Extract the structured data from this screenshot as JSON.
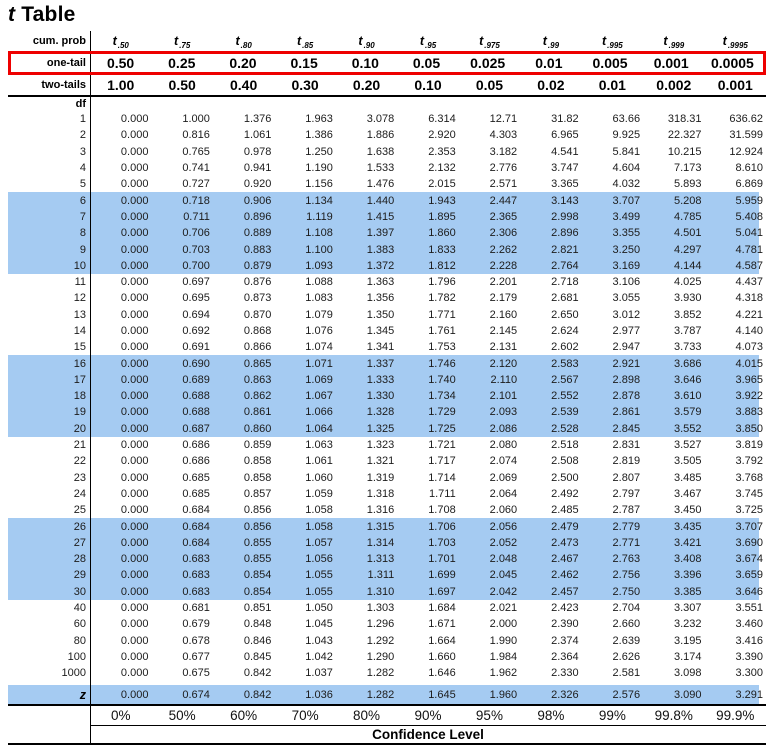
{
  "title": {
    "italic": "t",
    "rest": "Table"
  },
  "colors": {
    "highlight_blue": "#A5CBF2",
    "box_red": "#EE0000"
  },
  "header": {
    "corner_label": "cum. prob",
    "t_base": "t",
    "t_subscripts": [
      ".50",
      ".75",
      ".80",
      ".85",
      ".90",
      ".95",
      ".975",
      ".99",
      ".995",
      ".999",
      ".9995"
    ],
    "one_tail": {
      "label": "one-tail",
      "values": [
        "0.50",
        "0.25",
        "0.20",
        "0.15",
        "0.10",
        "0.05",
        "0.025",
        "0.01",
        "0.005",
        "0.001",
        "0.0005"
      ]
    },
    "two_tails": {
      "label": "two-tails",
      "values": [
        "1.00",
        "0.50",
        "0.40",
        "0.30",
        "0.20",
        "0.10",
        "0.05",
        "0.02",
        "0.01",
        "0.002",
        "0.001"
      ]
    },
    "df_label": "df"
  },
  "chart_data": {
    "type": "table",
    "title": "t Table",
    "columns": [
      "t.50",
      "t.75",
      "t.80",
      "t.85",
      "t.90",
      "t.95",
      "t.975",
      "t.99",
      "t.995",
      "t.999",
      "t.9995"
    ],
    "highlighted_df": [
      "6",
      "7",
      "8",
      "9",
      "10",
      "16",
      "17",
      "18",
      "19",
      "20",
      "26",
      "27",
      "28",
      "29",
      "30",
      "z"
    ],
    "rows": [
      {
        "df": "1",
        "v": [
          "0.000",
          "1.000",
          "1.376",
          "1.963",
          "3.078",
          "6.314",
          "12.71",
          "31.82",
          "63.66",
          "318.31",
          "636.62"
        ]
      },
      {
        "df": "2",
        "v": [
          "0.000",
          "0.816",
          "1.061",
          "1.386",
          "1.886",
          "2.920",
          "4.303",
          "6.965",
          "9.925",
          "22.327",
          "31.599"
        ]
      },
      {
        "df": "3",
        "v": [
          "0.000",
          "0.765",
          "0.978",
          "1.250",
          "1.638",
          "2.353",
          "3.182",
          "4.541",
          "5.841",
          "10.215",
          "12.924"
        ]
      },
      {
        "df": "4",
        "v": [
          "0.000",
          "0.741",
          "0.941",
          "1.190",
          "1.533",
          "2.132",
          "2.776",
          "3.747",
          "4.604",
          "7.173",
          "8.610"
        ]
      },
      {
        "df": "5",
        "v": [
          "0.000",
          "0.727",
          "0.920",
          "1.156",
          "1.476",
          "2.015",
          "2.571",
          "3.365",
          "4.032",
          "5.893",
          "6.869"
        ]
      },
      {
        "df": "6",
        "v": [
          "0.000",
          "0.718",
          "0.906",
          "1.134",
          "1.440",
          "1.943",
          "2.447",
          "3.143",
          "3.707",
          "5.208",
          "5.959"
        ]
      },
      {
        "df": "7",
        "v": [
          "0.000",
          "0.711",
          "0.896",
          "1.119",
          "1.415",
          "1.895",
          "2.365",
          "2.998",
          "3.499",
          "4.785",
          "5.408"
        ]
      },
      {
        "df": "8",
        "v": [
          "0.000",
          "0.706",
          "0.889",
          "1.108",
          "1.397",
          "1.860",
          "2.306",
          "2.896",
          "3.355",
          "4.501",
          "5.041"
        ]
      },
      {
        "df": "9",
        "v": [
          "0.000",
          "0.703",
          "0.883",
          "1.100",
          "1.383",
          "1.833",
          "2.262",
          "2.821",
          "3.250",
          "4.297",
          "4.781"
        ]
      },
      {
        "df": "10",
        "v": [
          "0.000",
          "0.700",
          "0.879",
          "1.093",
          "1.372",
          "1.812",
          "2.228",
          "2.764",
          "3.169",
          "4.144",
          "4.587"
        ]
      },
      {
        "df": "11",
        "v": [
          "0.000",
          "0.697",
          "0.876",
          "1.088",
          "1.363",
          "1.796",
          "2.201",
          "2.718",
          "3.106",
          "4.025",
          "4.437"
        ]
      },
      {
        "df": "12",
        "v": [
          "0.000",
          "0.695",
          "0.873",
          "1.083",
          "1.356",
          "1.782",
          "2.179",
          "2.681",
          "3.055",
          "3.930",
          "4.318"
        ]
      },
      {
        "df": "13",
        "v": [
          "0.000",
          "0.694",
          "0.870",
          "1.079",
          "1.350",
          "1.771",
          "2.160",
          "2.650",
          "3.012",
          "3.852",
          "4.221"
        ]
      },
      {
        "df": "14",
        "v": [
          "0.000",
          "0.692",
          "0.868",
          "1.076",
          "1.345",
          "1.761",
          "2.145",
          "2.624",
          "2.977",
          "3.787",
          "4.140"
        ]
      },
      {
        "df": "15",
        "v": [
          "0.000",
          "0.691",
          "0.866",
          "1.074",
          "1.341",
          "1.753",
          "2.131",
          "2.602",
          "2.947",
          "3.733",
          "4.073"
        ]
      },
      {
        "df": "16",
        "v": [
          "0.000",
          "0.690",
          "0.865",
          "1.071",
          "1.337",
          "1.746",
          "2.120",
          "2.583",
          "2.921",
          "3.686",
          "4.015"
        ]
      },
      {
        "df": "17",
        "v": [
          "0.000",
          "0.689",
          "0.863",
          "1.069",
          "1.333",
          "1.740",
          "2.110",
          "2.567",
          "2.898",
          "3.646",
          "3.965"
        ]
      },
      {
        "df": "18",
        "v": [
          "0.000",
          "0.688",
          "0.862",
          "1.067",
          "1.330",
          "1.734",
          "2.101",
          "2.552",
          "2.878",
          "3.610",
          "3.922"
        ]
      },
      {
        "df": "19",
        "v": [
          "0.000",
          "0.688",
          "0.861",
          "1.066",
          "1.328",
          "1.729",
          "2.093",
          "2.539",
          "2.861",
          "3.579",
          "3.883"
        ]
      },
      {
        "df": "20",
        "v": [
          "0.000",
          "0.687",
          "0.860",
          "1.064",
          "1.325",
          "1.725",
          "2.086",
          "2.528",
          "2.845",
          "3.552",
          "3.850"
        ]
      },
      {
        "df": "21",
        "v": [
          "0.000",
          "0.686",
          "0.859",
          "1.063",
          "1.323",
          "1.721",
          "2.080",
          "2.518",
          "2.831",
          "3.527",
          "3.819"
        ]
      },
      {
        "df": "22",
        "v": [
          "0.000",
          "0.686",
          "0.858",
          "1.061",
          "1.321",
          "1.717",
          "2.074",
          "2.508",
          "2.819",
          "3.505",
          "3.792"
        ]
      },
      {
        "df": "23",
        "v": [
          "0.000",
          "0.685",
          "0.858",
          "1.060",
          "1.319",
          "1.714",
          "2.069",
          "2.500",
          "2.807",
          "3.485",
          "3.768"
        ]
      },
      {
        "df": "24",
        "v": [
          "0.000",
          "0.685",
          "0.857",
          "1.059",
          "1.318",
          "1.711",
          "2.064",
          "2.492",
          "2.797",
          "3.467",
          "3.745"
        ]
      },
      {
        "df": "25",
        "v": [
          "0.000",
          "0.684",
          "0.856",
          "1.058",
          "1.316",
          "1.708",
          "2.060",
          "2.485",
          "2.787",
          "3.450",
          "3.725"
        ]
      },
      {
        "df": "26",
        "v": [
          "0.000",
          "0.684",
          "0.856",
          "1.058",
          "1.315",
          "1.706",
          "2.056",
          "2.479",
          "2.779",
          "3.435",
          "3.707"
        ]
      },
      {
        "df": "27",
        "v": [
          "0.000",
          "0.684",
          "0.855",
          "1.057",
          "1.314",
          "1.703",
          "2.052",
          "2.473",
          "2.771",
          "3.421",
          "3.690"
        ]
      },
      {
        "df": "28",
        "v": [
          "0.000",
          "0.683",
          "0.855",
          "1.056",
          "1.313",
          "1.701",
          "2.048",
          "2.467",
          "2.763",
          "3.408",
          "3.674"
        ]
      },
      {
        "df": "29",
        "v": [
          "0.000",
          "0.683",
          "0.854",
          "1.055",
          "1.311",
          "1.699",
          "2.045",
          "2.462",
          "2.756",
          "3.396",
          "3.659"
        ]
      },
      {
        "df": "30",
        "v": [
          "0.000",
          "0.683",
          "0.854",
          "1.055",
          "1.310",
          "1.697",
          "2.042",
          "2.457",
          "2.750",
          "3.385",
          "3.646"
        ]
      },
      {
        "df": "40",
        "v": [
          "0.000",
          "0.681",
          "0.851",
          "1.050",
          "1.303",
          "1.684",
          "2.021",
          "2.423",
          "2.704",
          "3.307",
          "3.551"
        ]
      },
      {
        "df": "60",
        "v": [
          "0.000",
          "0.679",
          "0.848",
          "1.045",
          "1.296",
          "1.671",
          "2.000",
          "2.390",
          "2.660",
          "3.232",
          "3.460"
        ]
      },
      {
        "df": "80",
        "v": [
          "0.000",
          "0.678",
          "0.846",
          "1.043",
          "1.292",
          "1.664",
          "1.990",
          "2.374",
          "2.639",
          "3.195",
          "3.416"
        ]
      },
      {
        "df": "100",
        "v": [
          "0.000",
          "0.677",
          "0.845",
          "1.042",
          "1.290",
          "1.660",
          "1.984",
          "2.364",
          "2.626",
          "3.174",
          "3.390"
        ]
      },
      {
        "df": "1000",
        "v": [
          "0.000",
          "0.675",
          "0.842",
          "1.037",
          "1.282",
          "1.646",
          "1.962",
          "2.330",
          "2.581",
          "3.098",
          "3.300"
        ]
      },
      {
        "df": "z",
        "v": [
          "0.000",
          "0.674",
          "0.842",
          "1.036",
          "1.282",
          "1.645",
          "1.960",
          "2.326",
          "2.576",
          "3.090",
          "3.291"
        ]
      }
    ]
  },
  "footer": {
    "confidence_levels": [
      "0%",
      "50%",
      "60%",
      "70%",
      "80%",
      "90%",
      "95%",
      "98%",
      "99%",
      "99.8%",
      "99.9%"
    ],
    "confidence_label": "Confidence Level"
  }
}
